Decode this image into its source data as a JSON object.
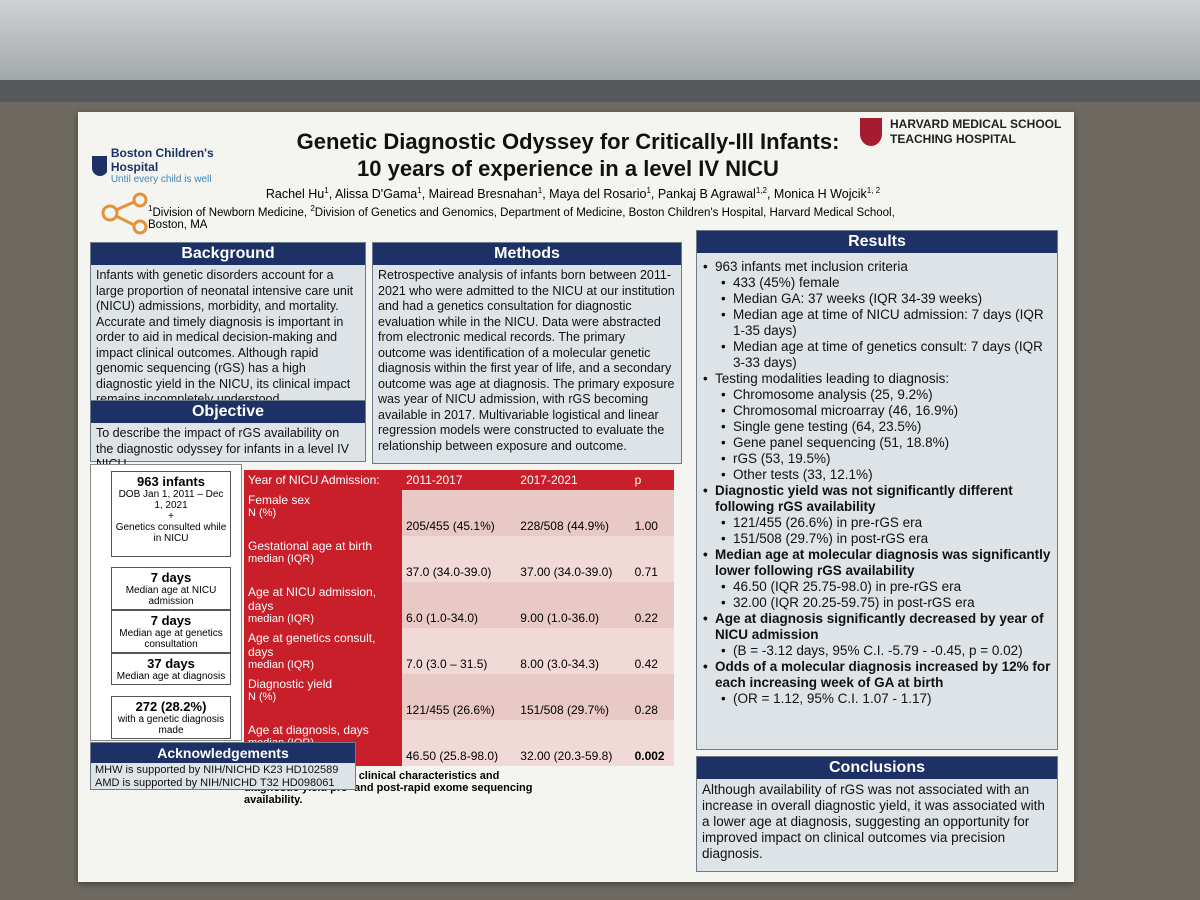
{
  "header": {
    "logo_left": {
      "name": "Boston Children's Hospital",
      "tagline": "Until every child is well"
    },
    "logo_right": {
      "line1": "HARVARD MEDICAL SCHOOL",
      "line2": "TEACHING HOSPITAL"
    },
    "title": [
      "Genetic Diagnostic Odyssey for Critically-Ill Infants:",
      "10 years of experience in a level IV NICU"
    ],
    "authors": [
      {
        "name": "Rachel Hu",
        "sup": "1",
        "sep": ", "
      },
      {
        "name": "Alissa D'Gama",
        "sup": "1",
        "sep": ", "
      },
      {
        "name": "Mairead Bresnahan",
        "sup": "1",
        "sep": ", "
      },
      {
        "name": "Maya del Rosario",
        "sup": "1",
        "sep": ", "
      },
      {
        "name": "Pankaj B Agrawal",
        "sup": "1,2",
        "sep": ", "
      },
      {
        "name": "Monica H Wojcik",
        "sup": "1, 2"
      }
    ],
    "affiliations": [
      {
        "sup": "1",
        "text": "Division of Newborn Medicine, "
      },
      {
        "sup": "2",
        "text": "Division of Genetics and Genomics, Department of Medicine, Boston Children's Hospital, Harvard Medical School, Boston, MA"
      }
    ]
  },
  "background": {
    "heading": "Background",
    "text": "Infants with genetic disorders account for a large proportion of neonatal intensive care unit (NICU) admissions, morbidity, and mortality. Accurate and timely diagnosis is important in order to aid in medical decision-making and impact clinical outcomes. Although rapid genomic sequencing (rGS) has a high diagnostic yield in the NICU, its clinical impact remains incompletely understood."
  },
  "objective": {
    "heading": "Objective",
    "text": "To describe the impact of rGS availability on the diagnostic odyssey for infants in a level IV NICU."
  },
  "methods": {
    "heading": "Methods",
    "text": "Retrospective analysis of infants born between 2011-2021 who were admitted to the NICU at our institution and had a genetics consultation for diagnostic evaluation while in the NICU. Data were abstracted from electronic medical records. The primary outcome was identification of a molecular genetic diagnosis within the first year of life, and a secondary outcome was age at diagnosis. The primary exposure was year of NICU admission, with rGS becoming available in 2017. Multivariable logistical and linear regression models were constructed to evaluate the relationship between exposure and outcome."
  },
  "flowchart": {
    "first": {
      "value": "963 infants",
      "lines": [
        "DOB Jan 1, 2011 – Dec 1, 2021",
        "+",
        "Genetics consulted while in NICU"
      ]
    },
    "boxes": [
      {
        "value": "7 days",
        "label": "Median age at NICU admission"
      },
      {
        "value": "7 days",
        "label": "Median age at genetics consultation"
      },
      {
        "value": "37 days",
        "label": "Median age at diagnosis"
      },
      {
        "value": "272 (28.2%)",
        "label": "with a genetic diagnosis made"
      }
    ]
  },
  "table": {
    "header": [
      "Year of NICU Admission:",
      "2011-2017",
      "2017-2021",
      "p"
    ],
    "rows": [
      [
        "Female sex",
        "N (%)",
        "205/455 (45.1%)",
        "228/508 (44.9%)",
        "1.00"
      ],
      [
        "Gestational age at birth",
        "median (IQR)",
        "37.0 (34.0-39.0)",
        "37.00 (34.0-39.0)",
        "0.71"
      ],
      [
        "Age at NICU admission, days",
        "median (IQR)",
        "6.0 (1.0-34.0)",
        "9.00 (1.0-36.0)",
        "0.22"
      ],
      [
        "Age at genetics consult, days",
        "median (IQR)",
        "7.0 (3.0 – 31.5)",
        "8.00 (3.0-34.3)",
        "0.42"
      ],
      [
        "Diagnostic yield",
        "N (%)",
        "121/455 (26.6%)",
        "151/508 (29.7%)",
        "0.28"
      ],
      [
        "Age at diagnosis, days",
        "median (IQR)",
        "46.50 (25.8-98.0)",
        "32.00 (20.3-59.8)",
        "0.002"
      ]
    ],
    "bold_p_row": 5,
    "caption": "Table. Comparison of clinical characteristics and diagnostic yield pre- and post-rapid exome sequencing availability."
  },
  "acknowledgements": {
    "heading": "Acknowledgements",
    "lines": [
      "MHW is supported by NIH/NICHD K23 HD102589",
      "AMD is supported by NIH/NICHD T32 HD098061"
    ]
  },
  "results": {
    "heading": "Results",
    "items": [
      {
        "text": "963 infants met inclusion criteria",
        "level": 1
      },
      {
        "text": "433 (45%) female",
        "level": 2
      },
      {
        "text": "Median GA: 37 weeks (IQR 34-39 weeks)",
        "level": 2
      },
      {
        "text": "Median age at time of NICU admission: 7 days (IQR 1-35 days)",
        "level": 2
      },
      {
        "text": "Median age at time of genetics consult: 7 days (IQR 3-33 days)",
        "level": 2
      },
      {
        "text": "Testing modalities leading to diagnosis:",
        "level": 1
      },
      {
        "text": "Chromosome analysis (25, 9.2%)",
        "level": 2
      },
      {
        "text": "Chromosomal microarray (46, 16.9%)",
        "level": 2
      },
      {
        "text": "Single gene testing (64, 23.5%)",
        "level": 2
      },
      {
        "text": "Gene panel sequencing (51, 18.8%)",
        "level": 2
      },
      {
        "text": "rGS (53, 19.5%)",
        "level": 2
      },
      {
        "text": "Other tests (33, 12.1%)",
        "level": 2
      },
      {
        "text": "Diagnostic yield was not significantly different following rGS availability",
        "level": 1,
        "bold": true
      },
      {
        "text": "121/455 (26.6%) in pre-rGS era",
        "level": 2
      },
      {
        "text": "151/508 (29.7%) in post-rGS era",
        "level": 2
      },
      {
        "text": "Median age at molecular diagnosis was significantly lower following rGS availability",
        "level": 1,
        "bold": true
      },
      {
        "text": "46.50 (IQR 25.75-98.0) in pre-rGS era",
        "level": 2
      },
      {
        "text": "32.00 (IQR 20.25-59.75) in post-rGS era",
        "level": 2
      },
      {
        "text": "Age at diagnosis significantly decreased by year of NICU admission",
        "level": 1,
        "bold": true
      },
      {
        "text": "(B = -3.12 days, 95% C.I. -5.79 - -0.45, p = 0.02)",
        "level": 2
      },
      {
        "text": "Odds of a molecular diagnosis increased by 12% for each increasing week of GA at birth",
        "level": 1,
        "bold": true
      },
      {
        "text": "(OR = 1.12, 95% C.I. 1.07 - 1.17)",
        "level": 2
      }
    ]
  },
  "conclusions": {
    "heading": "Conclusions",
    "text": "Although availability of rGS was not associated with an increase in overall diagnostic yield, it was associated with a lower age at diagnosis, suggesting an opportunity for improved impact on clinical outcomes via precision diagnosis."
  }
}
